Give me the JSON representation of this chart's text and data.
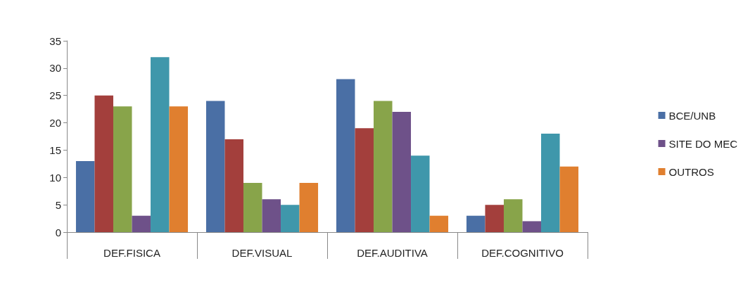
{
  "chart_data": {
    "type": "bar",
    "categories": [
      "DEF.FISICA",
      "DEF.VISUAL",
      "DEF.AUDITIVA",
      "DEF.COGNITIVO"
    ],
    "series": [
      {
        "name": "BCE/UNB",
        "color": "#4a6fa5",
        "values": [
          13,
          24,
          28,
          3
        ]
      },
      {
        "color": "#a33f3c",
        "values": [
          25,
          17,
          19,
          5
        ]
      },
      {
        "color": "#88a44a",
        "values": [
          23,
          9,
          24,
          6
        ]
      },
      {
        "name": "SITE DO MEC",
        "color": "#6e5189",
        "values": [
          3,
          6,
          22,
          2
        ]
      },
      {
        "color": "#3f97ab",
        "values": [
          32,
          5,
          14,
          18
        ]
      },
      {
        "name": "OUTROS",
        "color": "#e07f2f",
        "values": [
          23,
          9,
          3,
          12
        ]
      }
    ],
    "ylim": [
      0,
      35
    ],
    "yticks": [
      0,
      5,
      10,
      15,
      20,
      25,
      30,
      35
    ],
    "grid": false,
    "legend": "right"
  }
}
